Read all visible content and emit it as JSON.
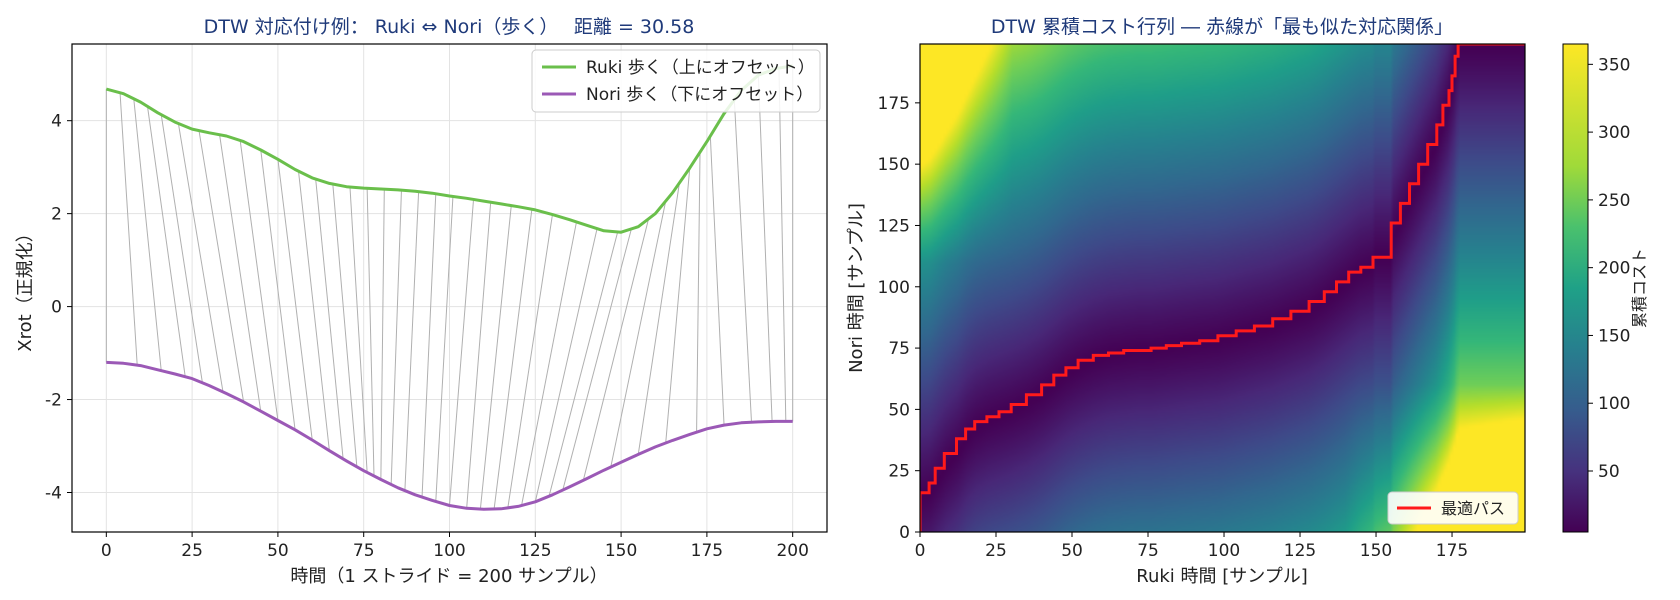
{
  "chart_data": [
    {
      "type": "line",
      "title": "DTW 対応付け例： Ruki ⇔ Nori（歩く）　 距離 = 30.58",
      "xlabel": "時間（1 ストライド = 200 サンプル）",
      "ylabel": "Xrot（正規化）",
      "xlim": [
        -10,
        210
      ],
      "ylim": [
        -4.85,
        5.65
      ],
      "x_ticks": [
        0,
        25,
        50,
        75,
        100,
        125,
        150,
        175,
        200
      ],
      "x_tick_labels": [
        "0",
        "25",
        "50",
        "75",
        "100",
        "125",
        "150",
        "175",
        "200"
      ],
      "y_ticks": [
        -4,
        -2,
        0,
        2,
        4
      ],
      "y_tick_labels": [
        "-4",
        "-2",
        "0",
        "2",
        "4"
      ],
      "grid": true,
      "legend_position": "top-right",
      "series": [
        {
          "name": "Ruki 歩く（上にオフセット）",
          "color": "#6abf4b",
          "x": [
            0,
            5,
            10,
            15,
            20,
            25,
            30,
            35,
            40,
            45,
            50,
            55,
            60,
            65,
            70,
            75,
            80,
            85,
            90,
            95,
            100,
            105,
            110,
            115,
            120,
            125,
            130,
            135,
            140,
            145,
            150,
            155,
            160,
            165,
            170,
            175,
            180,
            185,
            190,
            195,
            200
          ],
          "y": [
            4.68,
            4.58,
            4.4,
            4.17,
            3.97,
            3.82,
            3.74,
            3.67,
            3.55,
            3.37,
            3.17,
            2.95,
            2.77,
            2.65,
            2.58,
            2.55,
            2.53,
            2.51,
            2.48,
            2.44,
            2.38,
            2.33,
            2.27,
            2.21,
            2.15,
            2.08,
            1.98,
            1.87,
            1.75,
            1.63,
            1.6,
            1.72,
            2.0,
            2.45,
            2.98,
            3.55,
            4.15,
            4.65,
            4.98,
            5.12,
            5.18
          ]
        },
        {
          "name": "Nori 歩く（下にオフセット）",
          "color": "#9b59b6",
          "x": [
            0,
            5,
            10,
            15,
            20,
            25,
            30,
            35,
            40,
            45,
            50,
            55,
            60,
            65,
            70,
            75,
            80,
            85,
            90,
            95,
            100,
            105,
            110,
            115,
            120,
            125,
            130,
            135,
            140,
            145,
            150,
            155,
            160,
            165,
            170,
            175,
            180,
            185,
            190,
            195,
            200
          ],
          "y": [
            -1.2,
            -1.22,
            -1.27,
            -1.36,
            -1.45,
            -1.55,
            -1.7,
            -1.87,
            -2.05,
            -2.25,
            -2.45,
            -2.65,
            -2.87,
            -3.1,
            -3.32,
            -3.53,
            -3.72,
            -3.9,
            -4.05,
            -4.17,
            -4.28,
            -4.34,
            -4.36,
            -4.35,
            -4.3,
            -4.2,
            -4.05,
            -3.88,
            -3.7,
            -3.52,
            -3.35,
            -3.18,
            -3.02,
            -2.88,
            -2.75,
            -2.63,
            -2.55,
            -2.5,
            -2.48,
            -2.47,
            -2.47
          ]
        }
      ],
      "alignment_pairs": [
        [
          0,
          0
        ],
        [
          4,
          9
        ],
        [
          8,
          16
        ],
        [
          12,
          23
        ],
        [
          16,
          28
        ],
        [
          21,
          34
        ],
        [
          27,
          40
        ],
        [
          33,
          45
        ],
        [
          39,
          50
        ],
        [
          45,
          55
        ],
        [
          50,
          60
        ],
        [
          56,
          65
        ],
        [
          61,
          69
        ],
        [
          66,
          73
        ],
        [
          71,
          76
        ],
        [
          76,
          78
        ],
        [
          81,
          80
        ],
        [
          86,
          83
        ],
        [
          91,
          87
        ],
        [
          96,
          92
        ],
        [
          101,
          96
        ],
        [
          107,
          100
        ],
        [
          112,
          105
        ],
        [
          118,
          109
        ],
        [
          124,
          113
        ],
        [
          130,
          117
        ],
        [
          137,
          121
        ],
        [
          143,
          125
        ],
        [
          149,
          129
        ],
        [
          153,
          133
        ],
        [
          158,
          139
        ],
        [
          163,
          147
        ],
        [
          167,
          155
        ],
        [
          170,
          163
        ],
        [
          173,
          172
        ],
        [
          176,
          180
        ],
        [
          183,
          188
        ],
        [
          190,
          194
        ],
        [
          196,
          198
        ],
        [
          200,
          200
        ]
      ]
    },
    {
      "type": "heatmap",
      "title": "DTW 累積コスト行列 ― 赤線が「最も似た対応関係」",
      "xlabel": "Ruki 時間 [サンプル]",
      "ylabel": "Nori 時間 [サンプル]",
      "xlim": [
        0,
        199
      ],
      "ylim": [
        0,
        199
      ],
      "x_ticks": [
        0,
        25,
        50,
        75,
        100,
        125,
        150,
        175
      ],
      "x_tick_labels": [
        "0",
        "25",
        "50",
        "75",
        "100",
        "125",
        "150",
        "175"
      ],
      "y_ticks": [
        0,
        25,
        50,
        75,
        100,
        125,
        150,
        175
      ],
      "y_tick_labels": [
        "0",
        "25",
        "50",
        "75",
        "100",
        "125",
        "150",
        "175"
      ],
      "colormap": "viridis",
      "colorbar_label": "累積コスト",
      "colorbar_range": [
        5,
        365
      ],
      "colorbar_ticks": [
        50,
        100,
        150,
        200,
        250,
        300,
        350
      ],
      "colorbar_tick_labels": [
        "50",
        "100",
        "150",
        "200",
        "250",
        "300",
        "350"
      ],
      "legend_position": "bottom-right",
      "path_series": {
        "name": "最適パス",
        "color": "#ff1a1a",
        "x": [
          0,
          0,
          3,
          5,
          8,
          12,
          15,
          18,
          22,
          26,
          30,
          35,
          40,
          44,
          48,
          52,
          57,
          62,
          67,
          72,
          76,
          81,
          86,
          92,
          98,
          104,
          110,
          116,
          122,
          128,
          133,
          137,
          141,
          145,
          149,
          149,
          155,
          155,
          158,
          161,
          164,
          167,
          170,
          172,
          174,
          175,
          176,
          176,
          177,
          177,
          199
        ],
        "y": [
          0,
          14,
          16,
          20,
          26,
          32,
          38,
          42,
          45,
          47,
          49,
          52,
          56,
          60,
          64,
          67,
          70,
          72,
          73,
          74,
          74,
          75,
          76,
          77,
          78,
          80,
          82,
          84,
          87,
          90,
          94,
          98,
          102,
          106,
          108,
          112,
          112,
          118,
          126,
          134,
          142,
          150,
          158,
          166,
          174,
          180,
          186,
          190,
          194,
          199,
          199
        ]
      }
    }
  ]
}
